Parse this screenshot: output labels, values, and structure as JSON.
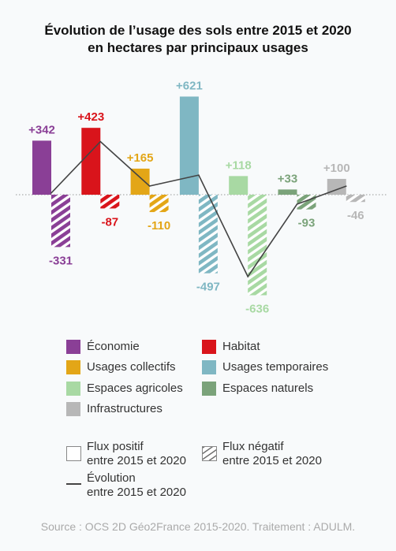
{
  "title_line1": "Évolution de l’usage des sols entre 2015 et 2020",
  "title_line2": "en hectares par principaux usages",
  "chart_data": {
    "type": "bar",
    "title": "Évolution de l’usage des sols entre 2015 et 2020 en hectares par principaux usages",
    "categories": [
      "Économie",
      "Habitat",
      "Usages collectifs",
      "Usages temporaires",
      "Espaces agricoles",
      "Espaces naturels",
      "Infrastructures"
    ],
    "colors": [
      "#8a3f96",
      "#d9141b",
      "#e3a617",
      "#7fb7c3",
      "#a8d9a3",
      "#7ba37a",
      "#b7b7b7"
    ],
    "series": [
      {
        "name": "Flux positif entre 2015 et 2020",
        "values": [
          342,
          423,
          165,
          621,
          118,
          33,
          100
        ],
        "labels": [
          "+342",
          "+423",
          "+165",
          "+621",
          "+118",
          "+33",
          "+100"
        ]
      },
      {
        "name": "Flux négatif entre 2015 et 2020",
        "values": [
          -331,
          -87,
          -110,
          -497,
          -636,
          -93,
          -46
        ],
        "labels": [
          "-331",
          "-87",
          "-110",
          "-497",
          "-636",
          "-93",
          "-46"
        ]
      },
      {
        "name": "Évolution entre 2015 et 2020",
        "type": "line",
        "values": [
          11,
          336,
          55,
          124,
          -518,
          -60,
          54
        ]
      }
    ],
    "ylim": [
      -700,
      700
    ]
  },
  "legend": {
    "categories": [
      "Économie",
      "Habitat",
      "Usages collectifs",
      "Usages temporaires",
      "Espaces agricoles",
      "Espaces naturels",
      "Infrastructures"
    ],
    "positive_line1": "Flux positif",
    "positive_line2": "entre 2015 et 2020",
    "negative_line1": "Flux négatif",
    "negative_line2": "entre 2015 et 2020",
    "evolution_line1": "Évolution",
    "evolution_line2": "entre 2015 et 2020"
  },
  "source": "Source : OCS 2D Géo2France 2015-2020. Traitement : ADULM."
}
